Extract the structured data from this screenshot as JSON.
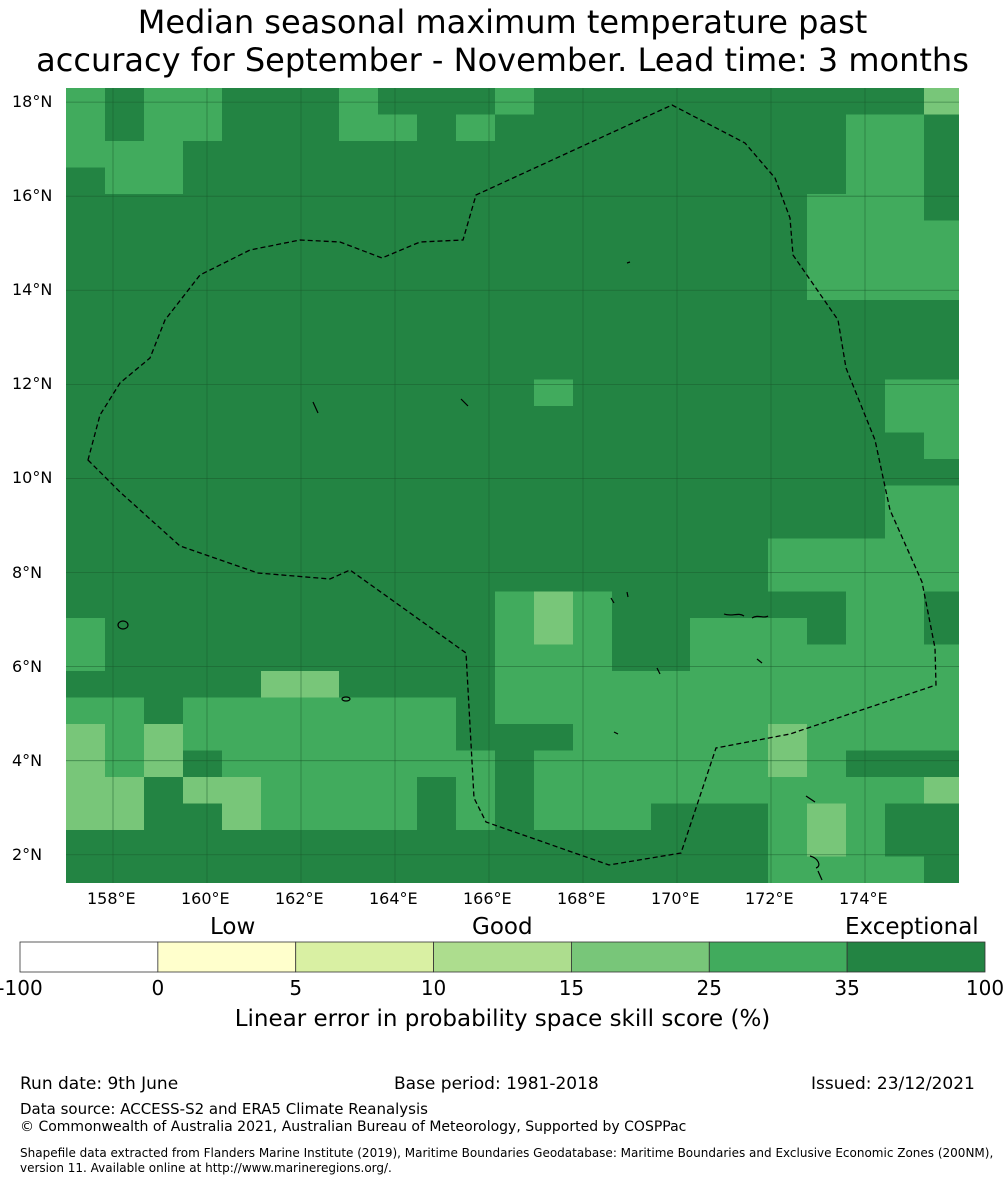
{
  "title": {
    "line1": "Median seasonal maximum temperature past",
    "line2": "accuracy for September - November. Lead time: 3 months"
  },
  "map": {
    "lat_labels": [
      "18°N",
      "16°N",
      "14°N",
      "12°N",
      "10°N",
      "8°N",
      "6°N",
      "4°N",
      "2°N"
    ],
    "lon_labels": [
      "158°E",
      "160°E",
      "162°E",
      "164°E",
      "166°E",
      "168°E",
      "170°E",
      "172°E",
      "174°E"
    ],
    "extent": {
      "lon_min": 157.0,
      "lon_max": 176.0,
      "lat_min": 1.4,
      "lat_max": 18.3
    },
    "gridlines": true,
    "boundary_style": "dashed",
    "dominant_category": "35-100"
  },
  "colorbar": {
    "words": {
      "low": "Low",
      "good": "Good",
      "exceptional": "Exceptional"
    },
    "ticks": [
      "-100",
      "0",
      "5",
      "10",
      "15",
      "25",
      "35",
      "100"
    ],
    "colors": [
      "#ffffff",
      "#ffffcc",
      "#d9f0a3",
      "#addd8e",
      "#78c679",
      "#41ab5d",
      "#238443"
    ],
    "label": "Linear error in probability space skill score (%)"
  },
  "footer": {
    "run_date": "Run date: 9th June",
    "base_period": "Base period: 1981-2018",
    "issued": "Issued: 23/12/2021",
    "data_source": "Data source: ACCESS-S2 and ERA5 Climate Reanalysis",
    "copyright": "© Commonwealth of Australia 2021, Australian Bureau of Meteorology, Supported by COSPPac",
    "shapefile": "Shapefile data extracted from Flanders Marine Institute (2019), Maritime Boundaries Geodatabase: Maritime Boundaries and Exclusive Economic Zones (200NM), version 11. Available online at http://www.marineregions.org/."
  }
}
